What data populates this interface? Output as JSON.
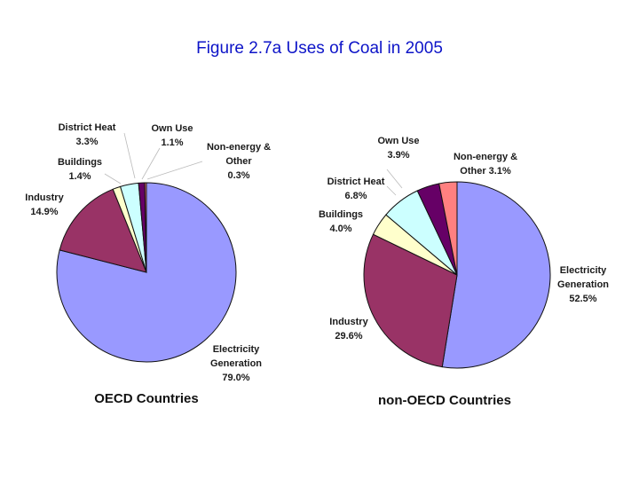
{
  "title": "Figure 2.7a  Uses of Coal in 2005",
  "chart_data": [
    {
      "type": "pie",
      "caption": "OECD Countries",
      "slices": [
        {
          "key": "electricity",
          "label": "Electricity Generation",
          "lines": [
            "Electricity",
            "Generation"
          ],
          "value": 79.0,
          "value_label": "79.0%",
          "color": "#9999ff"
        },
        {
          "key": "industry",
          "label": "Industry",
          "lines": [
            "Industry"
          ],
          "value": 14.9,
          "value_label": "14.9%",
          "color": "#993366"
        },
        {
          "key": "buildings",
          "label": "Buildings",
          "lines": [
            "Buildings"
          ],
          "value": 1.4,
          "value_label": "1.4%",
          "color": "#ffffcc"
        },
        {
          "key": "district-heat",
          "label": "District Heat",
          "lines": [
            "District Heat"
          ],
          "value": 3.3,
          "value_label": "3.3%",
          "color": "#ccffff"
        },
        {
          "key": "own-use",
          "label": "Own Use",
          "lines": [
            "Own Use"
          ],
          "value": 1.1,
          "value_label": "1.1%",
          "color": "#660066"
        },
        {
          "key": "non-energy",
          "label": "Non-energy & Other",
          "lines": [
            "Non-energy &",
            "Other"
          ],
          "value": 0.3,
          "value_label": "0.3%",
          "color": "#ff8080"
        }
      ]
    },
    {
      "type": "pie",
      "caption": "non-OECD Countries",
      "slices": [
        {
          "key": "electricity",
          "label": "Electricity Generation",
          "lines": [
            "Electricity",
            "Generation"
          ],
          "value": 52.5,
          "value_label": "52.5%",
          "color": "#9999ff"
        },
        {
          "key": "industry",
          "label": "Industry",
          "lines": [
            "Industry"
          ],
          "value": 29.6,
          "value_label": "29.6%",
          "color": "#993366"
        },
        {
          "key": "buildings",
          "label": "Buildings",
          "lines": [
            "Buildings"
          ],
          "value": 4.0,
          "value_label": "4.0%",
          "color": "#ffffcc"
        },
        {
          "key": "district-heat",
          "label": "District Heat",
          "lines": [
            "District Heat"
          ],
          "value": 6.8,
          "value_label": "6.8%",
          "color": "#ccffff"
        },
        {
          "key": "own-use",
          "label": "Own Use",
          "lines": [
            "Own Use"
          ],
          "value": 3.9,
          "value_label": "3.9%",
          "color": "#660066"
        },
        {
          "key": "non-energy",
          "label": "Non-energy & Other",
          "lines": [
            "Non-energy &",
            "Other 3.1%"
          ],
          "value": 3.1,
          "value_label": "3.1%",
          "color": "#ff8080"
        }
      ]
    }
  ]
}
